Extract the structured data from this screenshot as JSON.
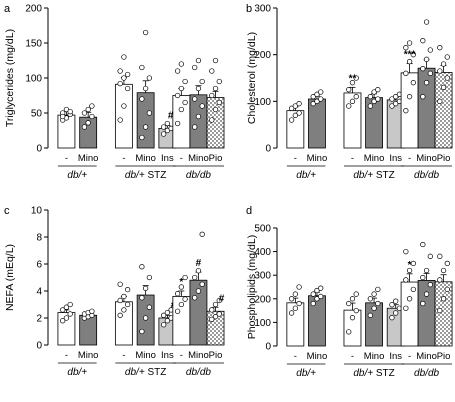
{
  "chart_data": [
    {
      "type": "bar",
      "panel_letter": "a",
      "ylabel": "Triglycerides (mg/dL)",
      "ylim": [
        0,
        200
      ],
      "yticks": [
        0,
        50,
        100,
        150,
        200
      ],
      "bar_labels": [
        "-",
        "Mino",
        "-",
        "Mino",
        "Ins",
        "-",
        "Mino",
        "Pio"
      ],
      "groups": [
        {
          "label": "db/+",
          "italic_part": "db/+",
          "suffix": ""
        },
        {
          "label": "db/+ STZ",
          "italic_part": "db/+",
          "suffix": " STZ"
        },
        {
          "label": "db/db",
          "italic_part": "db/db",
          "suffix": ""
        }
      ],
      "values": [
        47,
        44,
        91,
        79,
        28,
        75,
        76,
        72
      ],
      "errors": [
        5,
        7,
        10,
        17,
        4,
        10,
        13,
        9
      ],
      "annotations": [
        "",
        "",
        "",
        "",
        "##",
        "",
        "",
        ""
      ],
      "points": [
        [
          40,
          43,
          48,
          50,
          55,
          52,
          45
        ],
        [
          30,
          36,
          45,
          50,
          55,
          60
        ],
        [
          40,
          60,
          85,
          92,
          100,
          105,
          110,
          130
        ],
        [
          15,
          30,
          50,
          70,
          85,
          100,
          115,
          165
        ],
        [
          20,
          25,
          28,
          30,
          35
        ],
        [
          35,
          55,
          65,
          75,
          85,
          95,
          110,
          120
        ],
        [
          30,
          45,
          60,
          70,
          85,
          95,
          115,
          125
        ],
        [
          40,
          55,
          65,
          75,
          85,
          95,
          110,
          125
        ]
      ]
    },
    {
      "type": "bar",
      "panel_letter": "b",
      "ylabel": "Cholesterol (mg/dL)",
      "ylim": [
        0,
        300
      ],
      "yticks": [
        0,
        100,
        200,
        300
      ],
      "bar_labels": [
        "-",
        "Mino",
        "-",
        "Mino",
        "Ins",
        "-",
        "Mino",
        "Pio"
      ],
      "groups": [
        {
          "label": "db/+",
          "italic_part": "db/+",
          "suffix": ""
        },
        {
          "label": "db/+ STZ",
          "italic_part": "db/+",
          "suffix": " STZ"
        },
        {
          "label": "db/db",
          "italic_part": "db/db",
          "suffix": ""
        }
      ],
      "values": [
        80,
        105,
        118,
        108,
        103,
        161,
        171,
        162
      ],
      "errors": [
        8,
        6,
        12,
        8,
        5,
        20,
        18,
        15
      ],
      "annotations": [
        "",
        "",
        "**",
        "",
        "",
        "***",
        "",
        ""
      ],
      "points": [
        [
          60,
          70,
          75,
          85,
          90,
          95
        ],
        [
          95,
          100,
          105,
          110,
          115,
          120
        ],
        [
          90,
          100,
          110,
          125,
          140,
          150
        ],
        [
          90,
          100,
          105,
          110,
          120,
          125
        ],
        [
          90,
          95,
          100,
          105,
          110,
          115
        ],
        [
          80,
          110,
          140,
          160,
          185,
          200,
          215,
          225
        ],
        [
          110,
          140,
          160,
          170,
          190,
          210,
          230,
          270
        ],
        [
          100,
          130,
          150,
          165,
          180,
          195,
          215
        ]
      ]
    },
    {
      "type": "bar",
      "panel_letter": "c",
      "ylabel": "NEFA (mEq/L)",
      "ylim": [
        0,
        10
      ],
      "yticks": [
        0,
        2,
        4,
        6,
        8,
        10
      ],
      "bar_labels": [
        "-",
        "Mino",
        "-",
        "Mino",
        "Ins",
        "-",
        "Mino",
        "Pio"
      ],
      "groups": [
        {
          "label": "db/+",
          "italic_part": "db/+",
          "suffix": ""
        },
        {
          "label": "db/+ STZ",
          "italic_part": "db/+",
          "suffix": " STZ"
        },
        {
          "label": "db/db",
          "italic_part": "db/db",
          "suffix": ""
        }
      ],
      "values": [
        2.4,
        2.2,
        3.2,
        3.7,
        2.0,
        3.6,
        4.8,
        2.5
      ],
      "errors": [
        0.2,
        0.1,
        0.4,
        0.7,
        0.2,
        0.4,
        0.6,
        0.3
      ],
      "annotations": [
        "",
        "",
        "",
        "",
        "#",
        "*",
        "#",
        "#"
      ],
      "points": [
        [
          1.8,
          2.0,
          2.3,
          2.6,
          2.8,
          3.0
        ],
        [
          2.0,
          2.1,
          2.2,
          2.3,
          2.4,
          2.5
        ],
        [
          2.2,
          2.6,
          3.0,
          3.3,
          3.6,
          4.1,
          4.5
        ],
        [
          1.0,
          2.0,
          2.8,
          3.5,
          4.2,
          5.0,
          5.8
        ],
        [
          1.5,
          1.8,
          2.0,
          2.2,
          2.4,
          2.6
        ],
        [
          2.5,
          3.0,
          3.4,
          3.8,
          4.3,
          5.0
        ],
        [
          3.5,
          4.0,
          4.5,
          5.0,
          5.5,
          8.2
        ],
        [
          1.9,
          2.1,
          2.3,
          2.6,
          3.0,
          3.3
        ]
      ]
    },
    {
      "type": "bar",
      "panel_letter": "d",
      "ylabel": "Phospholipids (mg/dL)",
      "ylim": [
        0,
        500
      ],
      "yticks": [
        0,
        100,
        200,
        300,
        400,
        500
      ],
      "bar_labels": [
        "-",
        "Mino",
        "-",
        "Mino",
        "Ins",
        "-",
        "Mino",
        "Pio"
      ],
      "groups": [
        {
          "label": "db/+",
          "italic_part": "db/+",
          "suffix": ""
        },
        {
          "label": "db/+ STZ",
          "italic_part": "db/+",
          "suffix": " STZ"
        },
        {
          "label": "db/db",
          "italic_part": "db/db",
          "suffix": ""
        }
      ],
      "values": [
        183,
        213,
        152,
        183,
        160,
        271,
        278,
        272
      ],
      "errors": [
        20,
        15,
        30,
        20,
        15,
        35,
        30,
        30
      ],
      "annotations": [
        "",
        "",
        "",
        "",
        "",
        "*",
        "",
        ""
      ],
      "points": [
        [
          140,
          160,
          180,
          200,
          220,
          250
        ],
        [
          180,
          200,
          210,
          220,
          235,
          245
        ],
        [
          60,
          120,
          150,
          180,
          200,
          220
        ],
        [
          130,
          160,
          180,
          200,
          220,
          240
        ],
        [
          120,
          140,
          160,
          175,
          190
        ],
        [
          160,
          200,
          240,
          280,
          320,
          350,
          400
        ],
        [
          180,
          220,
          260,
          290,
          320,
          380,
          430
        ],
        [
          150,
          200,
          240,
          280,
          320,
          350,
          380
        ]
      ]
    }
  ],
  "colors": {
    "bar_fills": [
      "#ffffff",
      "#7f7f7f",
      "#ffffff",
      "#7f7f7f",
      "#c8c8c8",
      "#ffffff",
      "#7f7f7f",
      "#d0d0d0"
    ],
    "point_fill": "#ffffff",
    "stroke": "#000000"
  }
}
